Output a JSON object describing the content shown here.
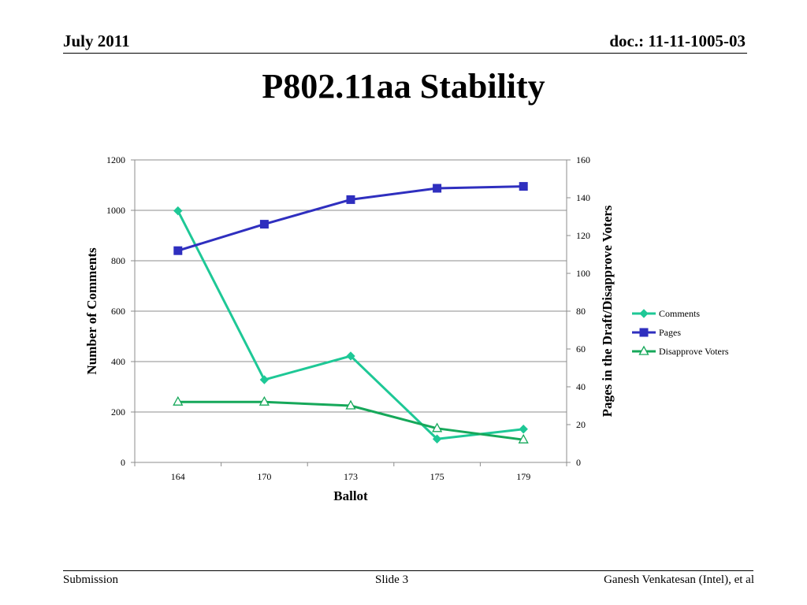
{
  "header": {
    "date": "July 2011",
    "doc": "doc.: 11-11-1005-03"
  },
  "slide": {
    "title": "P802.11aa Stability"
  },
  "footer": {
    "left": "Submission",
    "center": "Slide 3",
    "right": "Ganesh Venkatesan (Intel), et al"
  },
  "chart_data": {
    "type": "line",
    "categories": [
      "164",
      "170",
      "173",
      "175",
      "179"
    ],
    "xlabel": "Ballot",
    "ylabel": "Number of Comments",
    "y2label": "Pages in the Draft/Disapprove Voters",
    "ylim": [
      0,
      1200
    ],
    "yticks": [
      "0",
      "200",
      "400",
      "600",
      "800",
      "1000",
      "1200"
    ],
    "y2lim": [
      0,
      160
    ],
    "y2ticks": [
      "0",
      "20",
      "40",
      "60",
      "80",
      "100",
      "120",
      "140",
      "160"
    ],
    "grid": true,
    "legend_position": "right",
    "series": [
      {
        "name": "Comments",
        "axis": "left",
        "values": [
          998,
          328,
          422,
          93,
          132
        ],
        "color": "#1ec896",
        "marker": "diamond"
      },
      {
        "name": "Pages",
        "axis": "right",
        "values": [
          112,
          126,
          139,
          145,
          146
        ],
        "color": "#2f2fbf",
        "marker": "square"
      },
      {
        "name": "Disapprove Voters",
        "axis": "right",
        "values": [
          32,
          32,
          30,
          18,
          12
        ],
        "color": "#16a85a",
        "marker": "triangle-open"
      }
    ]
  }
}
